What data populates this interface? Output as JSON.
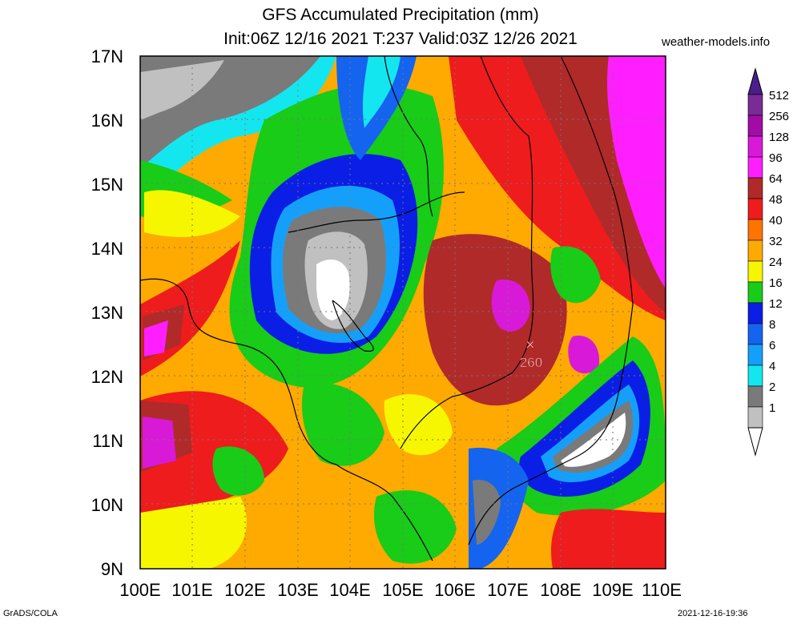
{
  "header": {
    "title_line1": "GFS Accumulated Precipitation (mm)",
    "title_line2": "Init:06Z 12/16 2021 T:237 Valid:03Z 12/26 2021",
    "credit": "weather-models.info"
  },
  "axes": {
    "lat_labels": [
      "17N",
      "16N",
      "15N",
      "14N",
      "13N",
      "12N",
      "11N",
      "10N",
      "9N"
    ],
    "lon_labels": [
      "100E",
      "101E",
      "102E",
      "103E",
      "104E",
      "105E",
      "106E",
      "107E",
      "108E",
      "109E",
      "110E"
    ]
  },
  "legend": {
    "entries": [
      {
        "label": "512",
        "color": "#7a2b96"
      },
      {
        "label": "256",
        "color": "#a10ca6"
      },
      {
        "label": "128",
        "color": "#d81ad8"
      },
      {
        "label": "96",
        "color": "#ff1eff"
      },
      {
        "label": "64",
        "color": "#b02a2a"
      },
      {
        "label": "48",
        "color": "#ee1c1c"
      },
      {
        "label": "40",
        "color": "#ff7300"
      },
      {
        "label": "32",
        "color": "#ffaa00"
      },
      {
        "label": "24",
        "color": "#f6f600"
      },
      {
        "label": "16",
        "color": "#18cc18"
      },
      {
        "label": "12",
        "color": "#0a1ee6"
      },
      {
        "label": "8",
        "color": "#1464f0"
      },
      {
        "label": "6",
        "color": "#14a0fa"
      },
      {
        "label": "4",
        "color": "#14e6f0"
      },
      {
        "label": "2",
        "color": "#7a7a7a"
      },
      {
        "label": "1",
        "color": "#c0c0c0"
      }
    ],
    "top_arrow_color": "#4a1e8c",
    "bottom_arrow_color": "#ffffff"
  },
  "annotation": {
    "marker": "×",
    "max_value": "260"
  },
  "footer": {
    "left": "GrADS/COLA",
    "right": "2021-12-16-19:36"
  }
}
